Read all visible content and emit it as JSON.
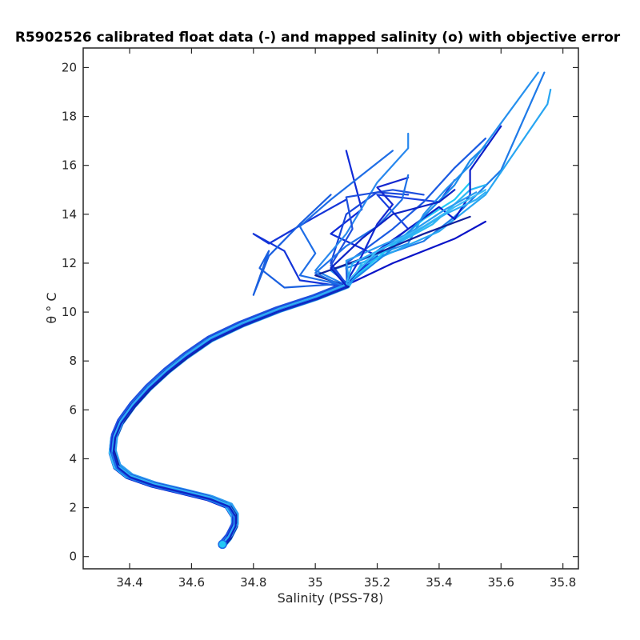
{
  "chart_data": {
    "type": "line",
    "title": "R5902526 calibrated float data (-) and mapped salinity (o) with objective error",
    "xlabel": "Salinity (PSS-78)",
    "ylabel": "θ ° C",
    "xlim": [
      34.25,
      35.85
    ],
    "ylim": [
      -0.5,
      20.8
    ],
    "xticks": [
      34.4,
      34.6,
      34.8,
      35,
      35.2,
      35.4,
      35.6,
      35.8
    ],
    "xtick_labels": [
      "34.4",
      "34.6",
      "34.8",
      "35",
      "35.2",
      "35.4",
      "35.6",
      "35.8"
    ],
    "yticks": [
      0,
      2,
      4,
      6,
      8,
      10,
      12,
      14,
      16,
      18,
      20
    ],
    "ytick_labels": [
      "0",
      "2",
      "4",
      "6",
      "8",
      "10",
      "12",
      "14",
      "16",
      "18",
      "20"
    ],
    "grid": false,
    "box": true,
    "colors": {
      "axes": "#262626",
      "background": "#ffffff",
      "profile_dark": "#0a14c8",
      "profile_mid": "#1a6ae6",
      "profile_light": "#22c8f5"
    },
    "common_deep_curve": [
      [
        34.7,
        0.5
      ],
      [
        34.72,
        0.8
      ],
      [
        34.74,
        1.3
      ],
      [
        34.74,
        1.7
      ],
      [
        34.72,
        2.1
      ],
      [
        34.66,
        2.4
      ],
      [
        34.58,
        2.65
      ],
      [
        34.48,
        2.95
      ],
      [
        34.4,
        3.3
      ],
      [
        34.36,
        3.7
      ],
      [
        34.345,
        4.3
      ],
      [
        34.35,
        4.9
      ],
      [
        34.37,
        5.5
      ],
      [
        34.41,
        6.2
      ],
      [
        34.46,
        6.9
      ],
      [
        34.52,
        7.6
      ],
      [
        34.58,
        8.2
      ],
      [
        34.66,
        8.9
      ],
      [
        34.76,
        9.5
      ],
      [
        34.88,
        10.1
      ],
      [
        35.0,
        10.6
      ],
      [
        35.1,
        11.1
      ]
    ],
    "series": [
      {
        "color": "#0a14c8",
        "points": [
          [
            35.1,
            11.1
          ],
          [
            35.25,
            12.0
          ],
          [
            35.45,
            13.0
          ],
          [
            35.55,
            13.7
          ]
        ]
      },
      {
        "color": "#0f2ad8",
        "points": [
          [
            35.1,
            11.1
          ],
          [
            35.2,
            12.3
          ],
          [
            35.05,
            13.2
          ],
          [
            35.15,
            14.2
          ],
          [
            35.1,
            16.6
          ]
        ]
      },
      {
        "color": "#1434d8",
        "points": [
          [
            34.95,
            11.3
          ],
          [
            34.9,
            12.5
          ],
          [
            34.8,
            13.2
          ],
          [
            34.85,
            12.8
          ],
          [
            35.0,
            13.9
          ],
          [
            35.1,
            14.6
          ]
        ]
      },
      {
        "color": "#1a40e0",
        "points": [
          [
            35.2,
            12.4
          ],
          [
            35.3,
            13.4
          ],
          [
            35.2,
            14.8
          ],
          [
            35.4,
            14.5
          ],
          [
            35.45,
            15.4
          ]
        ]
      },
      {
        "color": "#1f6ee6",
        "points": [
          [
            34.95,
            11.5
          ],
          [
            35.0,
            12.4
          ],
          [
            34.95,
            13.5
          ],
          [
            35.05,
            14.6
          ],
          [
            35.15,
            15.6
          ],
          [
            35.25,
            16.6
          ]
        ]
      },
      {
        "color": "#2590ee",
        "points": [
          [
            35.05,
            11.7
          ],
          [
            35.3,
            12.8
          ],
          [
            35.35,
            14.0
          ],
          [
            35.42,
            15.0
          ],
          [
            35.5,
            16.0
          ],
          [
            35.72,
            19.8
          ]
        ]
      },
      {
        "color": "#1e7ae8",
        "points": [
          [
            35.1,
            11.8
          ],
          [
            35.35,
            12.9
          ],
          [
            35.45,
            13.9
          ],
          [
            35.6,
            15.8
          ],
          [
            35.74,
            19.8
          ]
        ]
      },
      {
        "color": "#28a6f2",
        "points": [
          [
            35.15,
            11.9
          ],
          [
            35.4,
            13.3
          ],
          [
            35.55,
            14.8
          ],
          [
            35.75,
            18.5
          ],
          [
            35.76,
            19.1
          ]
        ]
      },
      {
        "color": "#2bb8f4",
        "points": [
          [
            35.15,
            12.0
          ],
          [
            35.38,
            13.6
          ],
          [
            35.5,
            15.0
          ],
          [
            35.55,
            15.2
          ]
        ]
      },
      {
        "color": "#22c8f5",
        "points": [
          [
            35.2,
            12.2
          ],
          [
            35.35,
            13.8
          ],
          [
            35.45,
            14.6
          ],
          [
            35.5,
            15.3
          ]
        ]
      },
      {
        "color": "#1a60e0",
        "points": [
          [
            34.9,
            11.0
          ],
          [
            34.82,
            11.8
          ],
          [
            34.85,
            12.5
          ],
          [
            34.8,
            10.7
          ],
          [
            34.85,
            12.3
          ],
          [
            34.95,
            13.6
          ],
          [
            35.05,
            14.8
          ]
        ]
      },
      {
        "color": "#0c1ec8",
        "points": [
          [
            35.2,
            12.5
          ],
          [
            35.4,
            14.3
          ],
          [
            35.45,
            13.8
          ],
          [
            35.5,
            14.8
          ],
          [
            35.5,
            15.8
          ],
          [
            35.6,
            17.6
          ]
        ]
      },
      {
        "color": "#1846dc",
        "points": [
          [
            35.05,
            12.0
          ],
          [
            35.1,
            14.0
          ],
          [
            35.2,
            14.9
          ],
          [
            35.3,
            14.8
          ]
        ]
      },
      {
        "color": "#2888ee",
        "points": [
          [
            35.0,
            11.7
          ],
          [
            35.1,
            13.2
          ],
          [
            35.2,
            15.3
          ],
          [
            35.3,
            16.7
          ],
          [
            35.3,
            17.3
          ]
        ]
      },
      {
        "color": "#1a5ae2",
        "points": [
          [
            35.1,
            12.0
          ],
          [
            35.25,
            13.4
          ],
          [
            35.35,
            14.5
          ],
          [
            35.45,
            15.9
          ],
          [
            35.55,
            17.1
          ]
        ]
      },
      {
        "color": "#1a8aea",
        "points": [
          [
            35.25,
            12.6
          ],
          [
            35.35,
            13.9
          ],
          [
            35.45,
            15.2
          ],
          [
            35.5,
            16.2
          ],
          [
            35.55,
            16.8
          ]
        ]
      },
      {
        "color": "#10209c",
        "points": [
          [
            35.0,
            11.5
          ],
          [
            35.2,
            12.4
          ],
          [
            35.35,
            13.2
          ],
          [
            35.5,
            13.9
          ]
        ]
      },
      {
        "color": "#2c9cf0",
        "points": [
          [
            35.1,
            12.1
          ],
          [
            35.3,
            13.2
          ],
          [
            35.42,
            14.2
          ],
          [
            35.52,
            14.9
          ]
        ]
      },
      {
        "color": "#3dbcf6",
        "points": [
          [
            35.2,
            12.5
          ],
          [
            35.35,
            13.5
          ],
          [
            35.45,
            14.3
          ],
          [
            35.55,
            15.0
          ]
        ]
      },
      {
        "color": "#1e50de",
        "points": [
          [
            35.05,
            11.9
          ],
          [
            35.12,
            13.4
          ],
          [
            35.1,
            14.7
          ],
          [
            35.25,
            15.0
          ],
          [
            35.35,
            14.8
          ]
        ]
      },
      {
        "color": "#1428d0",
        "points": [
          [
            35.15,
            12.3
          ],
          [
            35.2,
            13.6
          ],
          [
            35.25,
            14.4
          ],
          [
            35.2,
            15.1
          ],
          [
            35.3,
            15.5
          ]
        ]
      },
      {
        "color": "#1f72e8",
        "points": [
          [
            35.0,
            11.6
          ],
          [
            35.1,
            12.7
          ],
          [
            35.2,
            13.5
          ],
          [
            35.28,
            14.6
          ],
          [
            35.3,
            15.6
          ]
        ]
      },
      {
        "color": "#2fb0f4",
        "points": [
          [
            35.12,
            12.0
          ],
          [
            35.3,
            13.1
          ],
          [
            35.42,
            14.0
          ],
          [
            35.52,
            14.6
          ],
          [
            35.55,
            14.9
          ]
        ]
      },
      {
        "color": "#0e24c4",
        "points": [
          [
            35.05,
            11.8
          ],
          [
            35.15,
            13.0
          ],
          [
            35.25,
            14.0
          ],
          [
            35.4,
            14.5
          ],
          [
            35.45,
            15.0
          ]
        ]
      }
    ]
  }
}
